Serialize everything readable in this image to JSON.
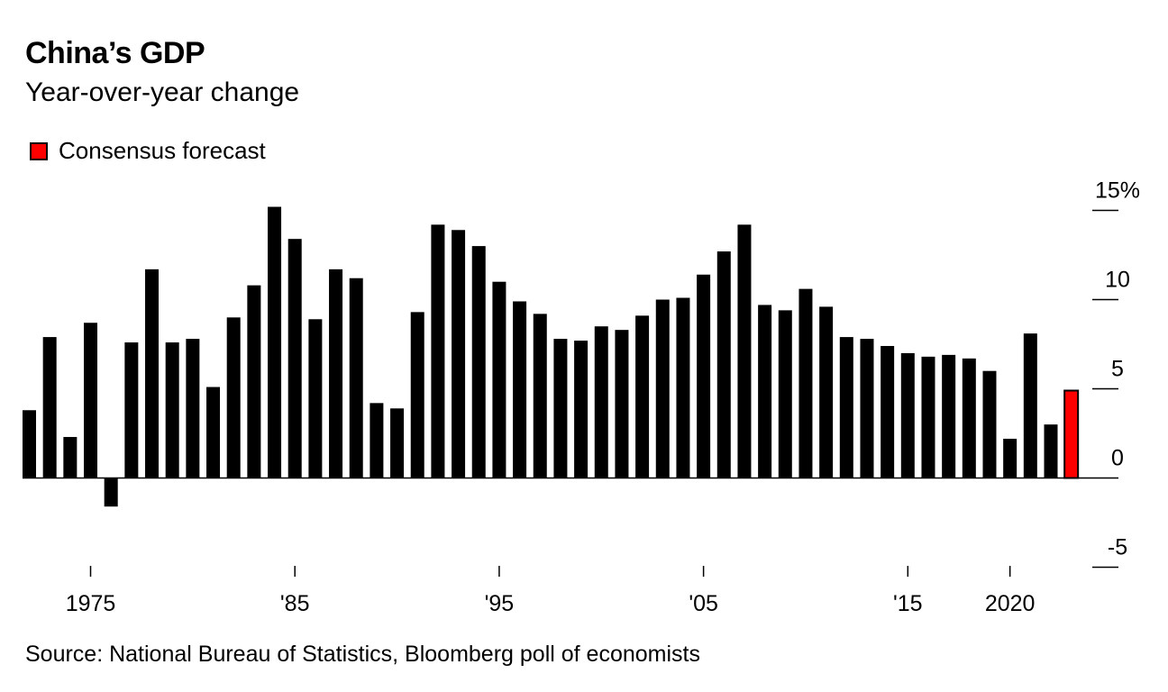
{
  "chart_data": {
    "type": "bar",
    "title": "China’s GDP",
    "subtitle": "Year-over-year change",
    "legend": [
      {
        "label": "Consensus forecast",
        "color": "#ff0000"
      }
    ],
    "source": "Source: National Bureau of Statistics, Bloomberg poll of economists",
    "x_start_year": 1972,
    "x_end_year": 2023,
    "values": [
      3.8,
      7.9,
      2.3,
      8.7,
      -1.6,
      7.6,
      11.7,
      7.6,
      7.8,
      5.1,
      9.0,
      10.8,
      15.2,
      13.4,
      8.9,
      11.7,
      11.2,
      4.2,
      3.9,
      9.3,
      14.2,
      13.9,
      13.0,
      11.0,
      9.9,
      9.2,
      7.8,
      7.7,
      8.5,
      8.3,
      9.1,
      10.0,
      10.1,
      11.4,
      12.7,
      14.2,
      9.7,
      9.4,
      10.6,
      9.6,
      7.9,
      7.8,
      7.4,
      7.0,
      6.8,
      6.9,
      6.7,
      6.0,
      2.2,
      8.1,
      3.0,
      4.9
    ],
    "forecast_index": 51,
    "bar_color": "#000000",
    "forecast_color": "#ff0000",
    "ylim": [
      -5,
      15
    ],
    "y_ticks": [
      {
        "value": 15,
        "label": "15%"
      },
      {
        "value": 10,
        "label": "10"
      },
      {
        "value": 5,
        "label": "5"
      },
      {
        "value": 0,
        "label": "0"
      },
      {
        "value": -5,
        "label": "-5"
      }
    ],
    "x_ticks": [
      {
        "year": 1975,
        "label": "1975"
      },
      {
        "year": 1985,
        "label": "'85"
      },
      {
        "year": 1995,
        "label": "'95"
      },
      {
        "year": 2005,
        "label": "'05"
      },
      {
        "year": 2015,
        "label": "'15"
      },
      {
        "year": 2020,
        "label": "2020"
      }
    ],
    "grid": false,
    "legend_position": "top-left"
  }
}
